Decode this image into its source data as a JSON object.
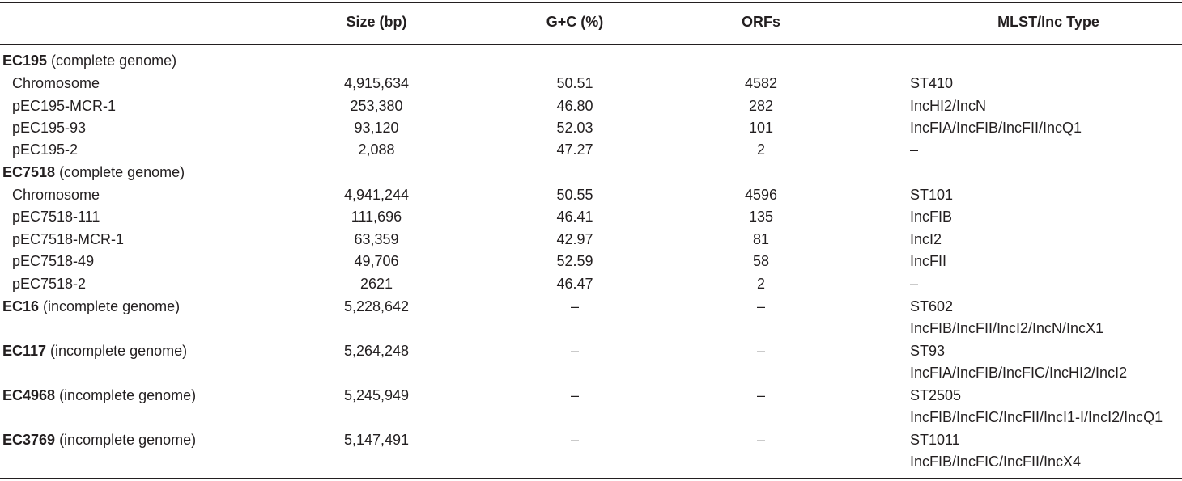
{
  "headers": {
    "name": "",
    "size": "Size (bp)",
    "gc": "G+C (%)",
    "orfs": "ORFs",
    "mlst": "MLST/Inc Type"
  },
  "rows": [
    {
      "strain": "EC195",
      "note": " (complete genome)"
    },
    {
      "name": "Chromosome",
      "size": "4,915,634",
      "gc": "50.51",
      "orfs": "4582",
      "mlst": "ST410"
    },
    {
      "name": "pEC195-MCR-1",
      "size": "253,380",
      "gc": "46.80",
      "orfs": "282",
      "mlst": "IncHI2/IncN"
    },
    {
      "name": "pEC195-93",
      "size": "93,120",
      "gc": "52.03",
      "orfs": "101",
      "mlst": "IncFIA/IncFIB/IncFII/IncQ1"
    },
    {
      "name": "pEC195-2",
      "size": "2,088",
      "gc": "47.27",
      "orfs": "2",
      "mlst": "–"
    },
    {
      "strain": "EC7518",
      "note": " (complete genome)"
    },
    {
      "name": "Chromosome",
      "size": "4,941,244",
      "gc": "50.55",
      "orfs": "4596",
      "mlst": "ST101"
    },
    {
      "name": "pEC7518-111",
      "size": "111,696",
      "gc": "46.41",
      "orfs": "135",
      "mlst": "IncFIB"
    },
    {
      "name": "pEC7518-MCR-1",
      "size": "63,359",
      "gc": "42.97",
      "orfs": "81",
      "mlst": "IncI2"
    },
    {
      "name": "pEC7518-49",
      "size": "49,706",
      "gc": "52.59",
      "orfs": "58",
      "mlst": "IncFII"
    },
    {
      "name": "pEC7518-2",
      "size": "2621",
      "gc": "46.47",
      "orfs": "2",
      "mlst": "–"
    },
    {
      "strain": "EC16",
      "note": " (incomplete genome)",
      "size": "5,228,642",
      "gc": "–",
      "orfs": "–",
      "mlst": "ST602",
      "mlst2": "IncFIB/IncFII/IncI2/IncN/IncX1"
    },
    {
      "strain": "EC117",
      "note": " (incomplete genome)",
      "size": "5,264,248",
      "gc": "–",
      "orfs": "–",
      "mlst": "ST93",
      "mlst2": "IncFIA/IncFIB/IncFIC/IncHI2/IncI2"
    },
    {
      "strain": "EC4968",
      "note": " (incomplete genome)",
      "size": "5,245,949",
      "gc": "–",
      "orfs": "–",
      "mlst": "ST2505",
      "mlst2": "IncFIB/IncFIC/IncFII/IncI1-I/IncI2/IncQ1"
    },
    {
      "strain": "EC3769",
      "note": " (incomplete genome)",
      "size": "5,147,491",
      "gc": "–",
      "orfs": "–",
      "mlst": "ST1011",
      "mlst2": "IncFIB/IncFIC/IncFII/IncX4"
    }
  ]
}
